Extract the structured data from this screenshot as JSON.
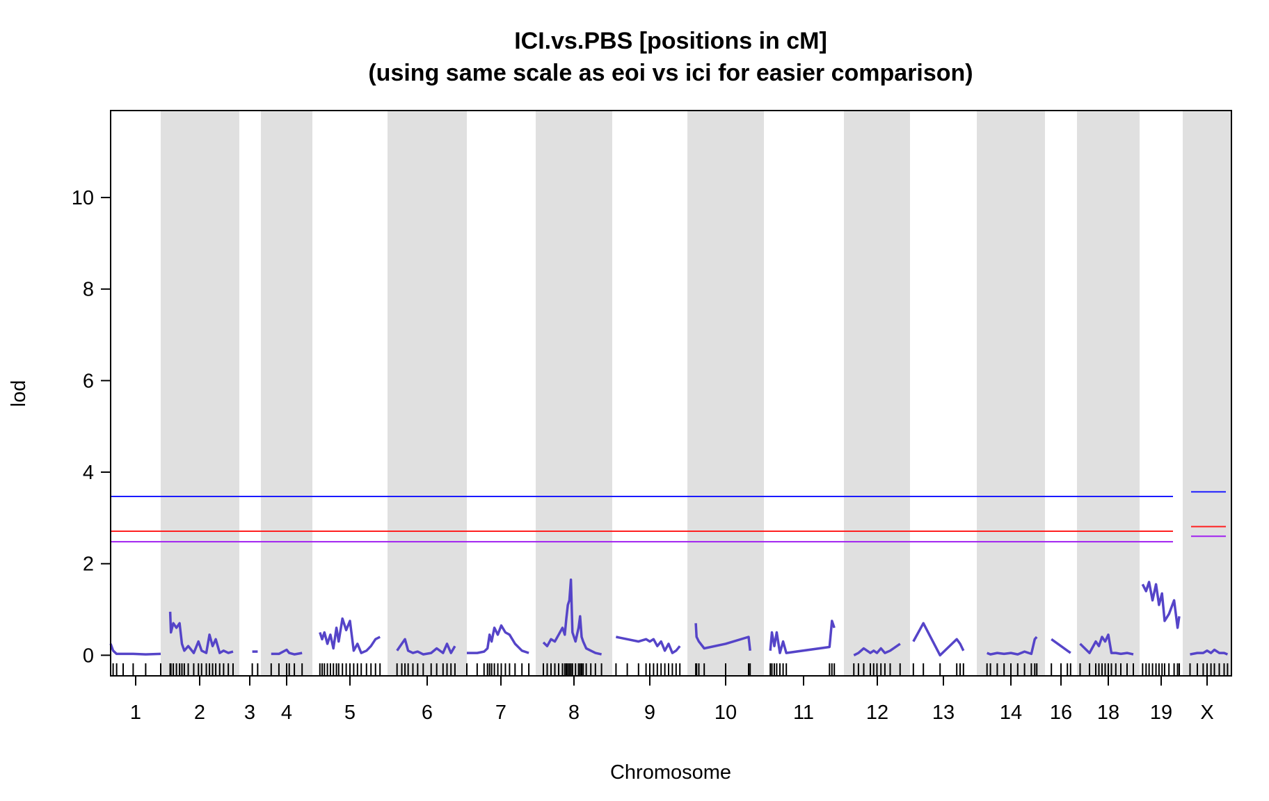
{
  "chart_data": {
    "type": "line",
    "title": "ICI.vs.PBS [positions in cM]",
    "subtitle": "(using same scale as eoi vs ici for easier comparison)",
    "xlabel": "Chromosome",
    "ylabel": "lod",
    "ylim": [
      -0.45,
      11.9
    ],
    "yticks": [
      0,
      2,
      4,
      6,
      8,
      10
    ],
    "grid": false,
    "series_color": "#5544c8",
    "band_color": "#e0e0e0",
    "chromosomes": [
      {
        "name": "1",
        "shaded": false,
        "x": [
          0.0,
          0.05,
          0.12,
          0.25,
          0.45,
          0.7,
          1.0
        ],
        "lod": [
          0.25,
          0.1,
          0.03,
          0.03,
          0.03,
          0.02,
          0.03
        ]
      },
      {
        "name": "2",
        "shaded": true,
        "x": [
          0.12,
          0.13,
          0.16,
          0.2,
          0.24,
          0.27,
          0.3,
          0.35,
          0.42,
          0.48,
          0.52,
          0.58,
          0.62,
          0.66,
          0.7,
          0.75,
          0.8,
          0.86,
          0.92
        ],
        "lod": [
          0.95,
          0.5,
          0.7,
          0.6,
          0.7,
          0.25,
          0.1,
          0.2,
          0.05,
          0.3,
          0.1,
          0.05,
          0.45,
          0.2,
          0.35,
          0.05,
          0.1,
          0.05,
          0.08
        ]
      },
      {
        "name": "3",
        "shaded": false,
        "x": [
          0.6,
          0.85
        ],
        "lod": [
          0.08,
          0.08
        ]
      },
      {
        "name": "4",
        "shaded": true,
        "x": [
          0.2,
          0.35,
          0.5,
          0.55,
          0.65,
          0.8
        ],
        "lod": [
          0.03,
          0.03,
          0.12,
          0.05,
          0.02,
          0.05
        ]
      },
      {
        "name": "5",
        "shaded": false,
        "x": [
          0.1,
          0.13,
          0.16,
          0.2,
          0.24,
          0.28,
          0.32,
          0.35,
          0.4,
          0.45,
          0.5,
          0.55,
          0.6,
          0.65,
          0.72,
          0.78,
          0.84,
          0.9
        ],
        "lod": [
          0.5,
          0.35,
          0.5,
          0.25,
          0.45,
          0.15,
          0.6,
          0.3,
          0.8,
          0.55,
          0.75,
          0.1,
          0.25,
          0.05,
          0.1,
          0.2,
          0.35,
          0.4
        ]
      },
      {
        "name": "6",
        "shaded": true,
        "x": [
          0.12,
          0.18,
          0.22,
          0.26,
          0.32,
          0.38,
          0.45,
          0.55,
          0.62,
          0.7,
          0.75,
          0.8,
          0.85
        ],
        "lod": [
          0.1,
          0.25,
          0.35,
          0.1,
          0.05,
          0.08,
          0.02,
          0.05,
          0.15,
          0.05,
          0.25,
          0.05,
          0.2
        ]
      },
      {
        "name": "7",
        "shaded": false,
        "x": [
          0.0,
          0.15,
          0.25,
          0.3,
          0.33,
          0.36,
          0.4,
          0.45,
          0.5,
          0.56,
          0.62,
          0.7,
          0.8,
          0.9
        ],
        "lod": [
          0.05,
          0.05,
          0.08,
          0.15,
          0.45,
          0.3,
          0.6,
          0.45,
          0.65,
          0.5,
          0.45,
          0.25,
          0.1,
          0.05
        ]
      },
      {
        "name": "8",
        "shaded": true,
        "x": [
          0.1,
          0.15,
          0.2,
          0.25,
          0.3,
          0.35,
          0.38,
          0.4,
          0.42,
          0.44,
          0.46,
          0.48,
          0.52,
          0.56,
          0.58,
          0.6,
          0.62,
          0.66,
          0.72,
          0.78,
          0.86
        ],
        "lod": [
          0.28,
          0.2,
          0.35,
          0.3,
          0.45,
          0.6,
          0.45,
          0.8,
          1.1,
          1.2,
          1.65,
          0.5,
          0.3,
          0.6,
          0.85,
          0.4,
          0.3,
          0.15,
          0.1,
          0.05,
          0.02
        ]
      },
      {
        "name": "9",
        "shaded": false,
        "x": [
          0.05,
          0.2,
          0.35,
          0.45,
          0.5,
          0.55,
          0.6,
          0.65,
          0.7,
          0.75,
          0.8,
          0.85,
          0.9
        ],
        "lod": [
          0.4,
          0.35,
          0.3,
          0.35,
          0.3,
          0.35,
          0.2,
          0.3,
          0.1,
          0.25,
          0.05,
          0.1,
          0.2
        ]
      },
      {
        "name": "10",
        "shaded": true,
        "x": [
          0.11,
          0.12,
          0.15,
          0.22,
          0.5,
          0.8,
          0.82
        ],
        "lod": [
          0.7,
          0.4,
          0.3,
          0.15,
          0.25,
          0.4,
          0.1
        ]
      },
      {
        "name": "11",
        "shaded": false,
        "x": [
          0.08,
          0.1,
          0.13,
          0.16,
          0.2,
          0.24,
          0.28,
          0.82,
          0.85,
          0.88
        ],
        "lod": [
          0.1,
          0.5,
          0.2,
          0.5,
          0.05,
          0.3,
          0.05,
          0.18,
          0.75,
          0.6
        ]
      },
      {
        "name": "12",
        "shaded": true,
        "x": [
          0.15,
          0.22,
          0.3,
          0.4,
          0.45,
          0.5,
          0.56,
          0.62,
          0.7,
          0.85
        ],
        "lod": [
          0.0,
          0.05,
          0.15,
          0.05,
          0.1,
          0.05,
          0.15,
          0.05,
          0.1,
          0.25
        ]
      },
      {
        "name": "13",
        "shaded": false,
        "x": [
          0.05,
          0.2,
          0.45,
          0.7,
          0.75,
          0.8
        ],
        "lod": [
          0.3,
          0.7,
          0.0,
          0.35,
          0.25,
          0.1
        ]
      },
      {
        "name": "14",
        "shaded": true,
        "x": [
          0.15,
          0.2,
          0.3,
          0.4,
          0.5,
          0.6,
          0.7,
          0.8,
          0.85,
          0.88
        ],
        "lod": [
          0.05,
          0.02,
          0.05,
          0.03,
          0.05,
          0.02,
          0.08,
          0.03,
          0.35,
          0.4
        ]
      },
      {
        "name": "16",
        "shaded": false,
        "x": [
          0.2,
          0.5,
          0.7,
          0.8
        ],
        "lod": [
          0.35,
          0.2,
          0.1,
          0.05
        ]
      },
      {
        "name": "18",
        "shaded": true,
        "x": [
          0.05,
          0.2,
          0.3,
          0.35,
          0.4,
          0.45,
          0.5,
          0.55,
          0.62,
          0.7,
          0.8,
          0.9
        ],
        "lod": [
          0.25,
          0.05,
          0.3,
          0.2,
          0.4,
          0.3,
          0.45,
          0.05,
          0.05,
          0.03,
          0.05,
          0.02
        ]
      },
      {
        "name": "19",
        "shaded": false,
        "x": [
          0.07,
          0.15,
          0.22,
          0.3,
          0.38,
          0.45,
          0.52,
          0.58,
          0.68,
          0.8,
          0.88,
          0.92
        ],
        "lod": [
          1.55,
          1.4,
          1.6,
          1.2,
          1.55,
          1.1,
          1.35,
          0.75,
          0.9,
          1.2,
          0.6,
          0.85
        ]
      },
      {
        "name": "X",
        "shaded": true,
        "x": [
          0.15,
          0.3,
          0.42,
          0.5,
          0.58,
          0.65,
          0.75,
          0.85,
          0.92
        ],
        "lod": [
          0.02,
          0.05,
          0.05,
          0.1,
          0.05,
          0.12,
          0.05,
          0.05,
          0.02
        ]
      }
    ],
    "thresholds": [
      {
        "color": "#1a1aff",
        "autosome": 3.47,
        "x_chrom": 3.57
      },
      {
        "color": "#ff2020",
        "autosome": 2.71,
        "x_chrom": 2.81
      },
      {
        "color": "#a020f0",
        "autosome": 2.48,
        "x_chrom": 2.6
      }
    ]
  }
}
